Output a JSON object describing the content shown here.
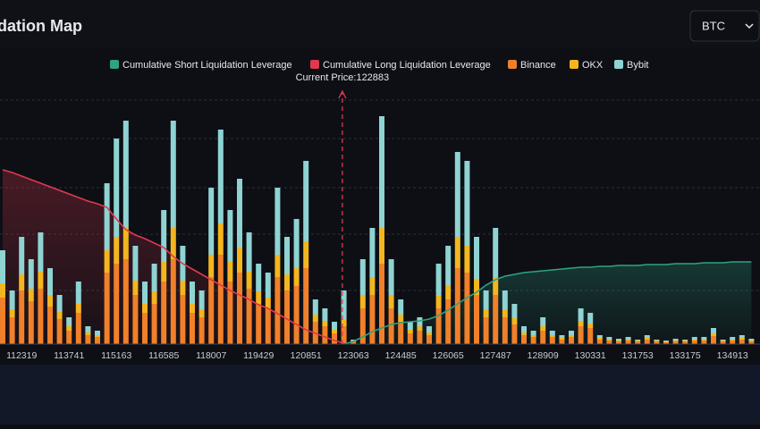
{
  "controls": {
    "symbol": "BTC"
  },
  "chart_data": {
    "type": "bar",
    "stacked": true,
    "title": "Liquidation Map",
    "annotation": {
      "text": "Current Price:122883",
      "value": 122883
    },
    "categories": [
      null,
      null,
      "112319",
      null,
      null,
      null,
      null,
      "113741",
      null,
      null,
      null,
      null,
      "115163",
      null,
      null,
      null,
      null,
      "116585",
      null,
      null,
      null,
      null,
      "118007",
      null,
      null,
      null,
      null,
      "119429",
      null,
      null,
      null,
      null,
      "120851",
      null,
      null,
      null,
      null,
      "123063",
      null,
      null,
      null,
      null,
      "124485",
      null,
      null,
      null,
      null,
      "126065",
      null,
      null,
      null,
      null,
      "127487",
      null,
      null,
      null,
      null,
      "128909",
      null,
      null,
      null,
      null,
      "130331",
      null,
      null,
      null,
      null,
      "131753",
      null,
      null,
      null,
      null,
      "133175",
      null,
      null,
      null,
      null,
      "134913",
      null,
      null
    ],
    "ylim": [
      0,
      260
    ],
    "y2lim": [
      0,
      260
    ],
    "series": [
      {
        "name": "Cumulative Short Liquidation Leverage",
        "type": "line",
        "axis": "y2",
        "color": "#2fa283",
        "values": [
          null,
          null,
          null,
          null,
          null,
          null,
          null,
          null,
          null,
          null,
          null,
          null,
          null,
          null,
          null,
          null,
          null,
          null,
          null,
          null,
          null,
          null,
          null,
          null,
          null,
          null,
          null,
          null,
          null,
          null,
          null,
          null,
          null,
          null,
          null,
          null,
          0,
          3,
          8,
          14,
          18,
          22,
          24,
          25,
          26,
          28,
          32,
          38,
          45,
          52,
          58,
          66,
          72,
          76,
          78,
          80,
          81,
          82,
          83,
          84,
          85,
          86,
          86,
          87,
          87,
          88,
          88,
          88,
          89,
          89,
          89,
          90,
          90,
          90,
          91,
          91,
          91,
          92,
          92,
          92
        ]
      },
      {
        "name": "Cumulative Long Liquidation Leverage",
        "type": "line",
        "axis": "y2",
        "color": "#e0394f",
        "values": [
          195,
          192,
          188,
          184,
          180,
          176,
          172,
          168,
          164,
          160,
          157,
          153,
          140,
          128,
          122,
          118,
          113,
          108,
          98,
          90,
          84,
          78,
          72,
          66,
          60,
          55,
          50,
          44,
          40,
          34,
          28,
          22,
          16,
          12,
          8,
          4,
          1,
          null,
          null,
          null,
          null,
          null,
          null,
          null,
          null,
          null,
          null,
          null,
          null,
          null,
          null,
          null,
          null,
          null,
          null,
          null,
          null,
          null,
          null,
          null,
          null,
          null,
          null,
          null,
          null,
          null,
          null,
          null,
          null,
          null,
          null,
          null,
          null,
          null,
          null,
          null,
          null,
          null,
          null,
          null
        ]
      },
      {
        "name": "Binance",
        "type": "bar",
        "color": "#f0802a",
        "values": [
          52,
          30,
          60,
          48,
          62,
          42,
          28,
          15,
          35,
          10,
          8,
          80,
          90,
          95,
          55,
          35,
          45,
          70,
          95,
          55,
          35,
          30,
          75,
          100,
          70,
          80,
          62,
          45,
          40,
          75,
          60,
          65,
          85,
          25,
          20,
          12,
          20,
          3,
          40,
          55,
          90,
          40,
          25,
          12,
          15,
          10,
          40,
          50,
          85,
          80,
          55,
          30,
          55,
          30,
          22,
          10,
          8,
          15,
          8,
          5,
          8,
          20,
          18,
          5,
          4,
          3,
          4,
          3,
          5,
          3,
          2,
          3,
          3,
          4,
          4,
          9,
          3,
          4,
          5,
          3
        ]
      },
      {
        "name": "OKX",
        "type": "bar",
        "color": "#f3b61f",
        "values": [
          16,
          9,
          18,
          14,
          19,
          13,
          8,
          5,
          10,
          3,
          2,
          25,
          30,
          35,
          16,
          10,
          14,
          22,
          35,
          16,
          10,
          9,
          25,
          35,
          22,
          28,
          19,
          14,
          12,
          25,
          18,
          20,
          30,
          8,
          6,
          4,
          8,
          1,
          15,
          20,
          40,
          15,
          8,
          4,
          5,
          3,
          14,
          16,
          35,
          30,
          18,
          9,
          20,
          9,
          7,
          3,
          2,
          5,
          2,
          2,
          2,
          6,
          5,
          2,
          1,
          1,
          1,
          1,
          2,
          1,
          1,
          1,
          1,
          1,
          1,
          3,
          1,
          1,
          2,
          1
        ]
      },
      {
        "name": "Bybit",
        "type": "bar",
        "color": "#8fd3d3",
        "values": [
          37,
          21,
          42,
          33,
          44,
          30,
          19,
          10,
          25,
          7,
          5,
          75,
          110,
          120,
          39,
          25,
          31,
          58,
          120,
          39,
          25,
          21,
          75,
          105,
          58,
          77,
          44,
          31,
          28,
          75,
          42,
          55,
          90,
          17,
          14,
          9,
          32,
          1,
          40,
          55,
          125,
          40,
          17,
          9,
          10,
          7,
          36,
          44,
          95,
          95,
          47,
          21,
          55,
          21,
          16,
          7,
          5,
          10,
          5,
          3,
          5,
          14,
          12,
          3,
          3,
          2,
          3,
          1,
          3,
          1,
          1,
          2,
          1,
          3,
          3,
          6,
          1,
          3,
          3,
          2
        ]
      }
    ]
  }
}
